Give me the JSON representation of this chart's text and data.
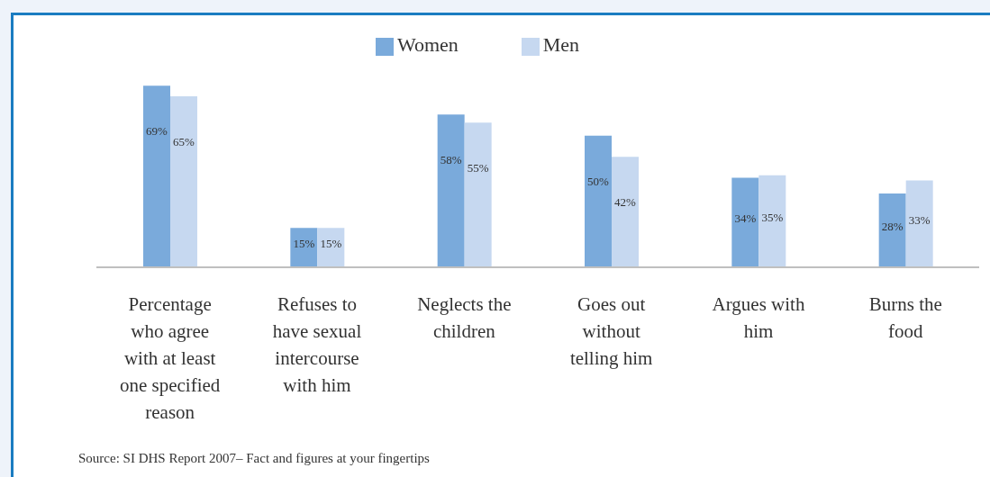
{
  "chart_data": {
    "type": "bar",
    "categories": [
      "Percentage who agree with at least one specified reason",
      "Refuses to have sexual intercourse with him",
      "Neglects the children",
      "Goes out without telling him",
      "Argues with him",
      "Burns the food"
    ],
    "series": [
      {
        "name": "Women",
        "color": "#7aaadb",
        "values": [
          69,
          15,
          58,
          50,
          34,
          28
        ],
        "value_labels": [
          "69%",
          "15%",
          "58%",
          "50%",
          "34%",
          "28%"
        ]
      },
      {
        "name": "Men",
        "color": "#c6d8f0",
        "values": [
          65,
          15,
          55,
          42,
          35,
          33
        ],
        "value_labels": [
          "65%",
          "15%",
          "55%",
          "42%",
          "35%",
          "33%"
        ]
      }
    ],
    "legend": "top",
    "grid": false,
    "annotations": [
      "Source: SI DHS Report 2007– Fact and figures at your fingertips"
    ]
  }
}
